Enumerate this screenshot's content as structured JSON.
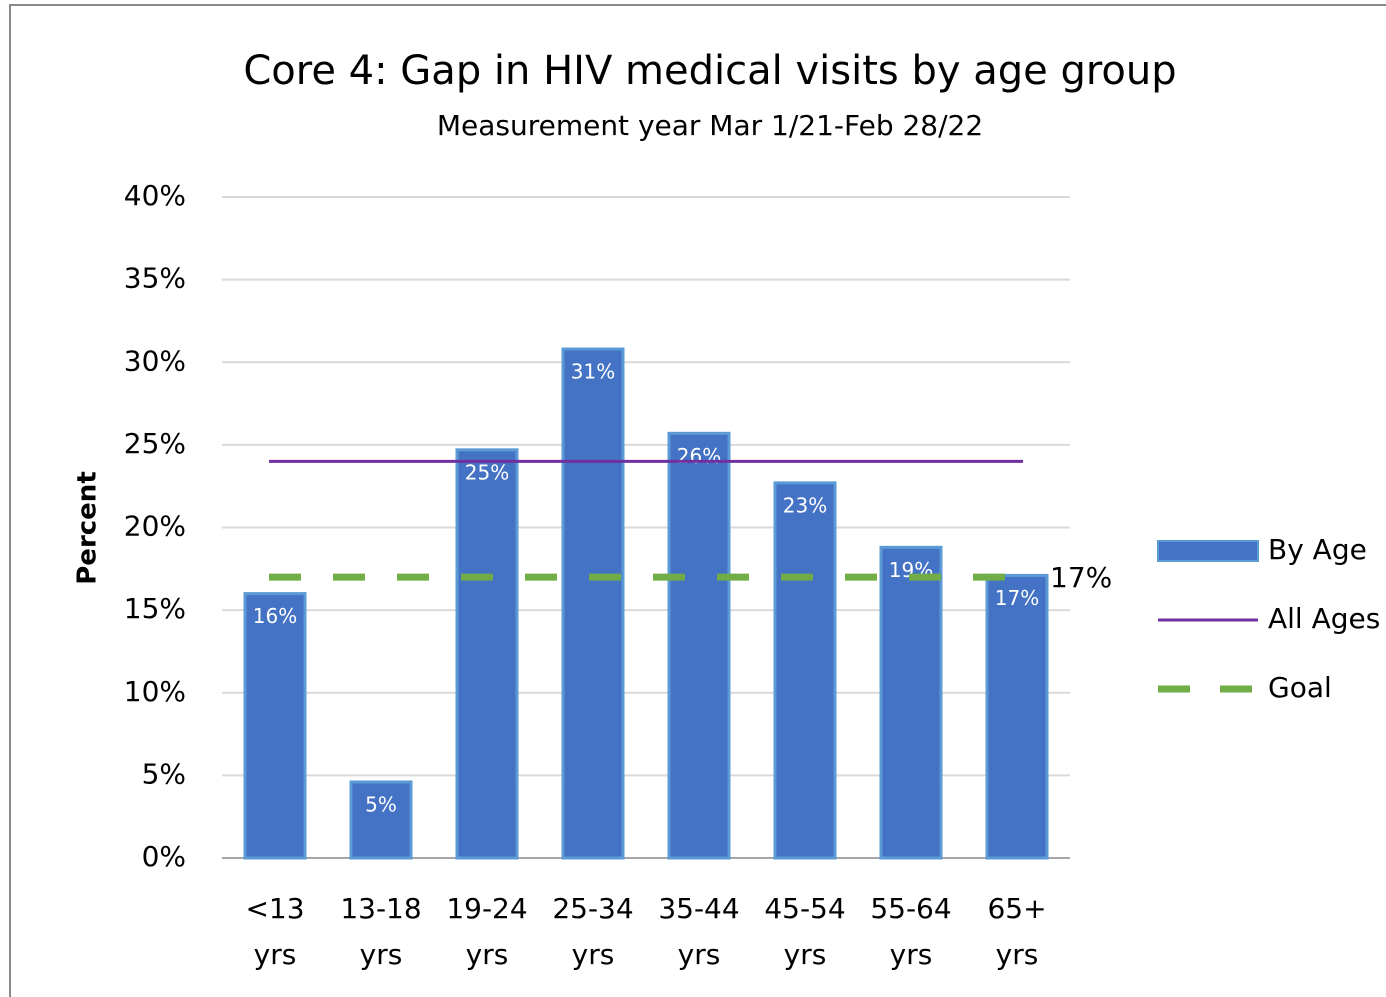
{
  "chart_data": {
    "type": "bar",
    "title": "Core 4: Gap in HIV medical visits by age group",
    "subtitle": "Measurement year Mar 1/21-Feb 28/22",
    "y_label": "Percent",
    "categories": [
      "<13 yrs",
      "13-18 yrs",
      "19-24 yrs",
      "25-34 yrs",
      "35-44 yrs",
      "45-54 yrs",
      "55-64 yrs",
      "65+ yrs"
    ],
    "series": [
      {
        "name": "By Age",
        "type": "bar",
        "color": "#4472c4",
        "values": [
          16,
          4.6,
          24.7,
          30.8,
          25.7,
          22.7,
          18.8,
          17.1
        ],
        "value_labels": [
          "16%",
          "5%",
          "25%",
          "31%",
          "26%",
          "23%",
          "19%",
          "17%"
        ]
      },
      {
        "name": "All Ages",
        "type": "line",
        "color": "#7030a0",
        "value": 24
      },
      {
        "name": "Goal",
        "type": "dashed",
        "color": "#70ad47",
        "value": 17,
        "value_label": "17%"
      }
    ],
    "ylim": [
      0,
      40
    ],
    "yticks": [
      {
        "value": 0,
        "label": "0%"
      },
      {
        "value": 5,
        "label": "5%"
      },
      {
        "value": 10,
        "label": "10%"
      },
      {
        "value": 15,
        "label": "15%"
      },
      {
        "value": 20,
        "label": "20%"
      },
      {
        "value": 25,
        "label": "25%"
      },
      {
        "value": 30,
        "label": "30%"
      },
      {
        "value": 35,
        "label": "35%"
      },
      {
        "value": 40,
        "label": "40%"
      }
    ],
    "grid": true,
    "legend": "right"
  }
}
